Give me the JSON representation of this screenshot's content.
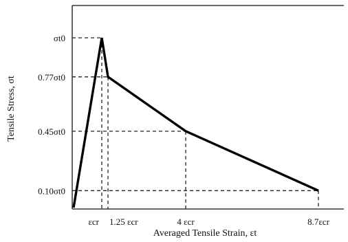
{
  "chart_data": {
    "type": "line",
    "xlabel": "Averaged Tensile Strain, εt",
    "ylabel": "Tensile Stress, σt",
    "grid": false,
    "series": [
      {
        "x": [
          0,
          1,
          1.25,
          4,
          8.7
        ],
        "y": [
          0,
          1.0,
          0.77,
          0.45,
          0.1
        ]
      }
    ],
    "x_ticks": [
      {
        "x": 1,
        "label": "εcr"
      },
      {
        "x": 1.25,
        "label": "1.25 εcr"
      },
      {
        "x": 4,
        "label": "4 εcr"
      },
      {
        "x": 8.7,
        "label": "8.7εcr"
      }
    ],
    "y_ticks": [
      {
        "y": 1.0,
        "label": "σt0"
      },
      {
        "y": 0.77,
        "label": "0.77σt0"
      },
      {
        "y": 0.45,
        "label": "0.45σt0"
      },
      {
        "y": 0.1,
        "label": "0.10σt0"
      }
    ],
    "colors": {
      "line": "#000000",
      "axis": "#111111",
      "guides": "#222222"
    }
  }
}
